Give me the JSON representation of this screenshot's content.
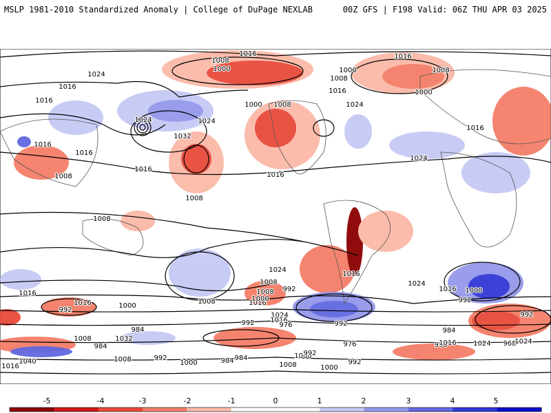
{
  "header": {
    "title": "MSLP 1981-2010 Standardized Anomaly | College of DuPage NEXLAB",
    "run_info": "00Z GFS | F198 Valid: 06Z THU APR 03 2025"
  },
  "colors": {
    "neg5": "#8b0000",
    "neg4": "#d01818",
    "neg3": "#e84a3a",
    "neg2": "#f47e68",
    "neg1": "#fbb9a8",
    "pos1": "#c6c9f4",
    "pos2": "#9498ea",
    "pos3": "#6168e0",
    "pos4": "#3237d6",
    "pos5": "#0a0ec8"
  },
  "colorbar": {
    "ticks": [
      "-5",
      "-4",
      "-3",
      "-2",
      "-1",
      "0",
      "1",
      "2",
      "3",
      "4",
      "5"
    ]
  },
  "contour_labels": [
    "1016",
    "1008",
    "1000",
    "1016",
    "1008",
    "1000",
    "1024",
    "1016",
    "1008",
    "1000",
    "1024",
    "1016",
    "1016",
    "1024",
    "1024",
    "1032",
    "1000",
    "1008",
    "1016",
    "1016",
    "1024",
    "1016",
    "1008",
    "1016",
    "1016",
    "1008",
    "1008",
    "1024",
    "1008",
    "1016",
    "1008",
    "1016",
    "1024",
    "1016",
    "1016",
    "1008",
    "1000",
    "992",
    "1000",
    "992",
    "1024",
    "1016",
    "992",
    "1016",
    "1008",
    "1000",
    "992",
    "984",
    "976",
    "992",
    "968",
    "976",
    "984",
    "960",
    "1000",
    "992",
    "1024",
    "984",
    "1032",
    "1016",
    "1040",
    "1008",
    "992",
    "1000",
    "984",
    "992",
    "1008",
    "1000",
    "992",
    "1016",
    "1024",
    "984"
  ]
}
